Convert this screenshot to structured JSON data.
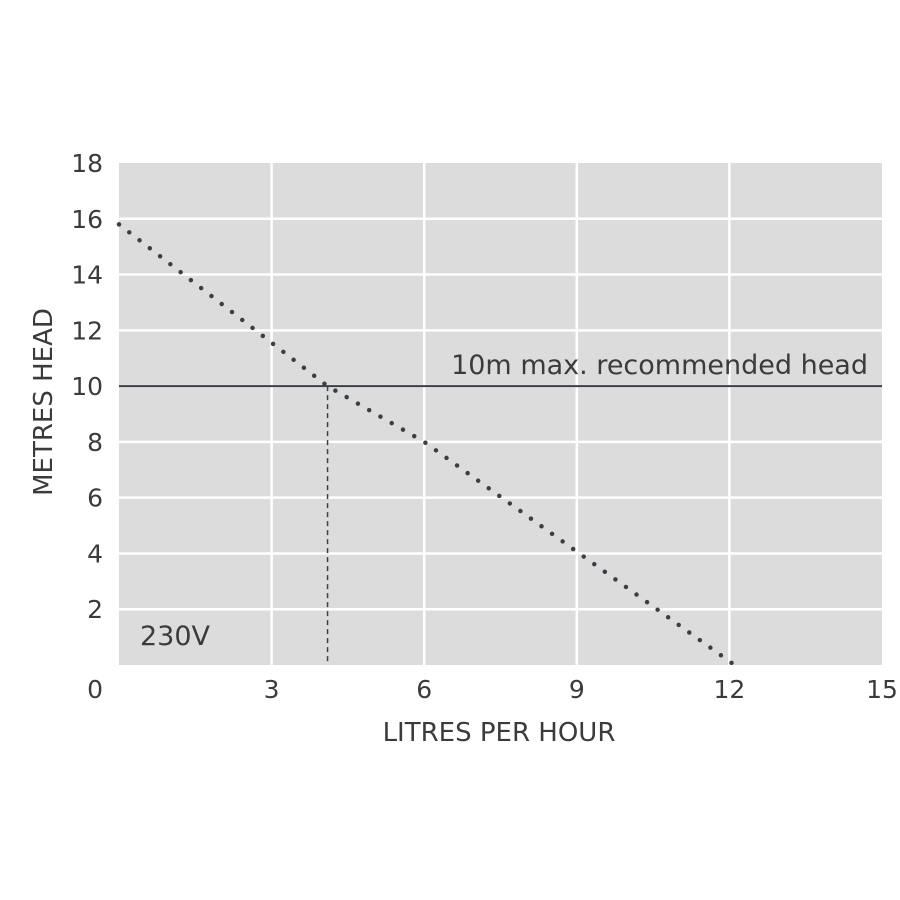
{
  "chart_data": {
    "type": "line",
    "xlabel": "LITRES PER HOUR",
    "ylabel": "METRES HEAD",
    "xlim": [
      0,
      15
    ],
    "ylim": [
      0,
      18
    ],
    "x_ticks": [
      "0",
      "3",
      "6",
      "9",
      "12",
      "15"
    ],
    "y_ticks": [
      "2",
      "4",
      "6",
      "8",
      "10",
      "12",
      "14",
      "16",
      "18"
    ],
    "grid": true,
    "series": [
      {
        "style": "dotted",
        "x": [
          0,
          4.1,
          6.0,
          12.1
        ],
        "y": [
          15.8,
          10.0,
          8.0,
          0
        ]
      }
    ],
    "reference_line": {
      "y": 10,
      "label": "10m max. recommended head"
    },
    "drop_line": {
      "x": 4.1,
      "from_y": 10,
      "to_y": 0
    },
    "voltage_label": "230V",
    "colors": {
      "plot_background": "#dcdcdc",
      "grid": "#ffffff",
      "line": "#3a3f47",
      "text": "#3b3b3b"
    }
  }
}
